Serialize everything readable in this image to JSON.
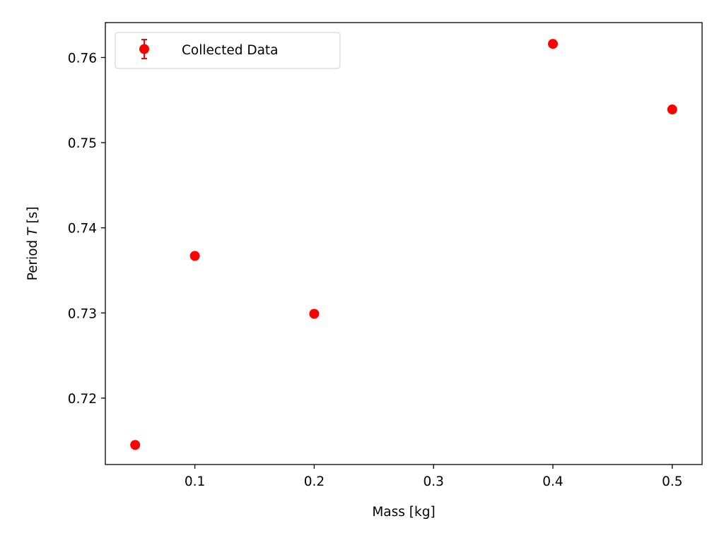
{
  "chart_data": {
    "type": "scatter",
    "title": "",
    "xlabel": "Mass [kg]",
    "ylabel_prefix": "Period ",
    "ylabel_var": "T",
    "ylabel_suffix": " [s]",
    "xlim": [
      0.025,
      0.525
    ],
    "ylim": [
      0.7122,
      0.7641
    ],
    "xticks": [
      0.1,
      0.2,
      0.3,
      0.4,
      0.5
    ],
    "xtick_labels": [
      "0.1",
      "0.2",
      "0.3",
      "0.4",
      "0.5"
    ],
    "yticks": [
      0.72,
      0.73,
      0.74,
      0.75,
      0.76
    ],
    "ytick_labels": [
      "0.72",
      "0.73",
      "0.74",
      "0.75",
      "0.76"
    ],
    "grid": false,
    "legend": {
      "placement": "upper-left",
      "entries": [
        {
          "label": "Collected Data",
          "marker": "circle-with-errorbar",
          "color": "#ff0000"
        }
      ]
    },
    "series": [
      {
        "name": "Collected Data",
        "color": "#ff0000",
        "marker": "circle",
        "points": [
          {
            "x": 0.05,
            "y": 0.7145
          },
          {
            "x": 0.1,
            "y": 0.7367
          },
          {
            "x": 0.2,
            "y": 0.7299
          },
          {
            "x": 0.4,
            "y": 0.7616
          },
          {
            "x": 0.5,
            "y": 0.7539
          }
        ]
      }
    ]
  }
}
